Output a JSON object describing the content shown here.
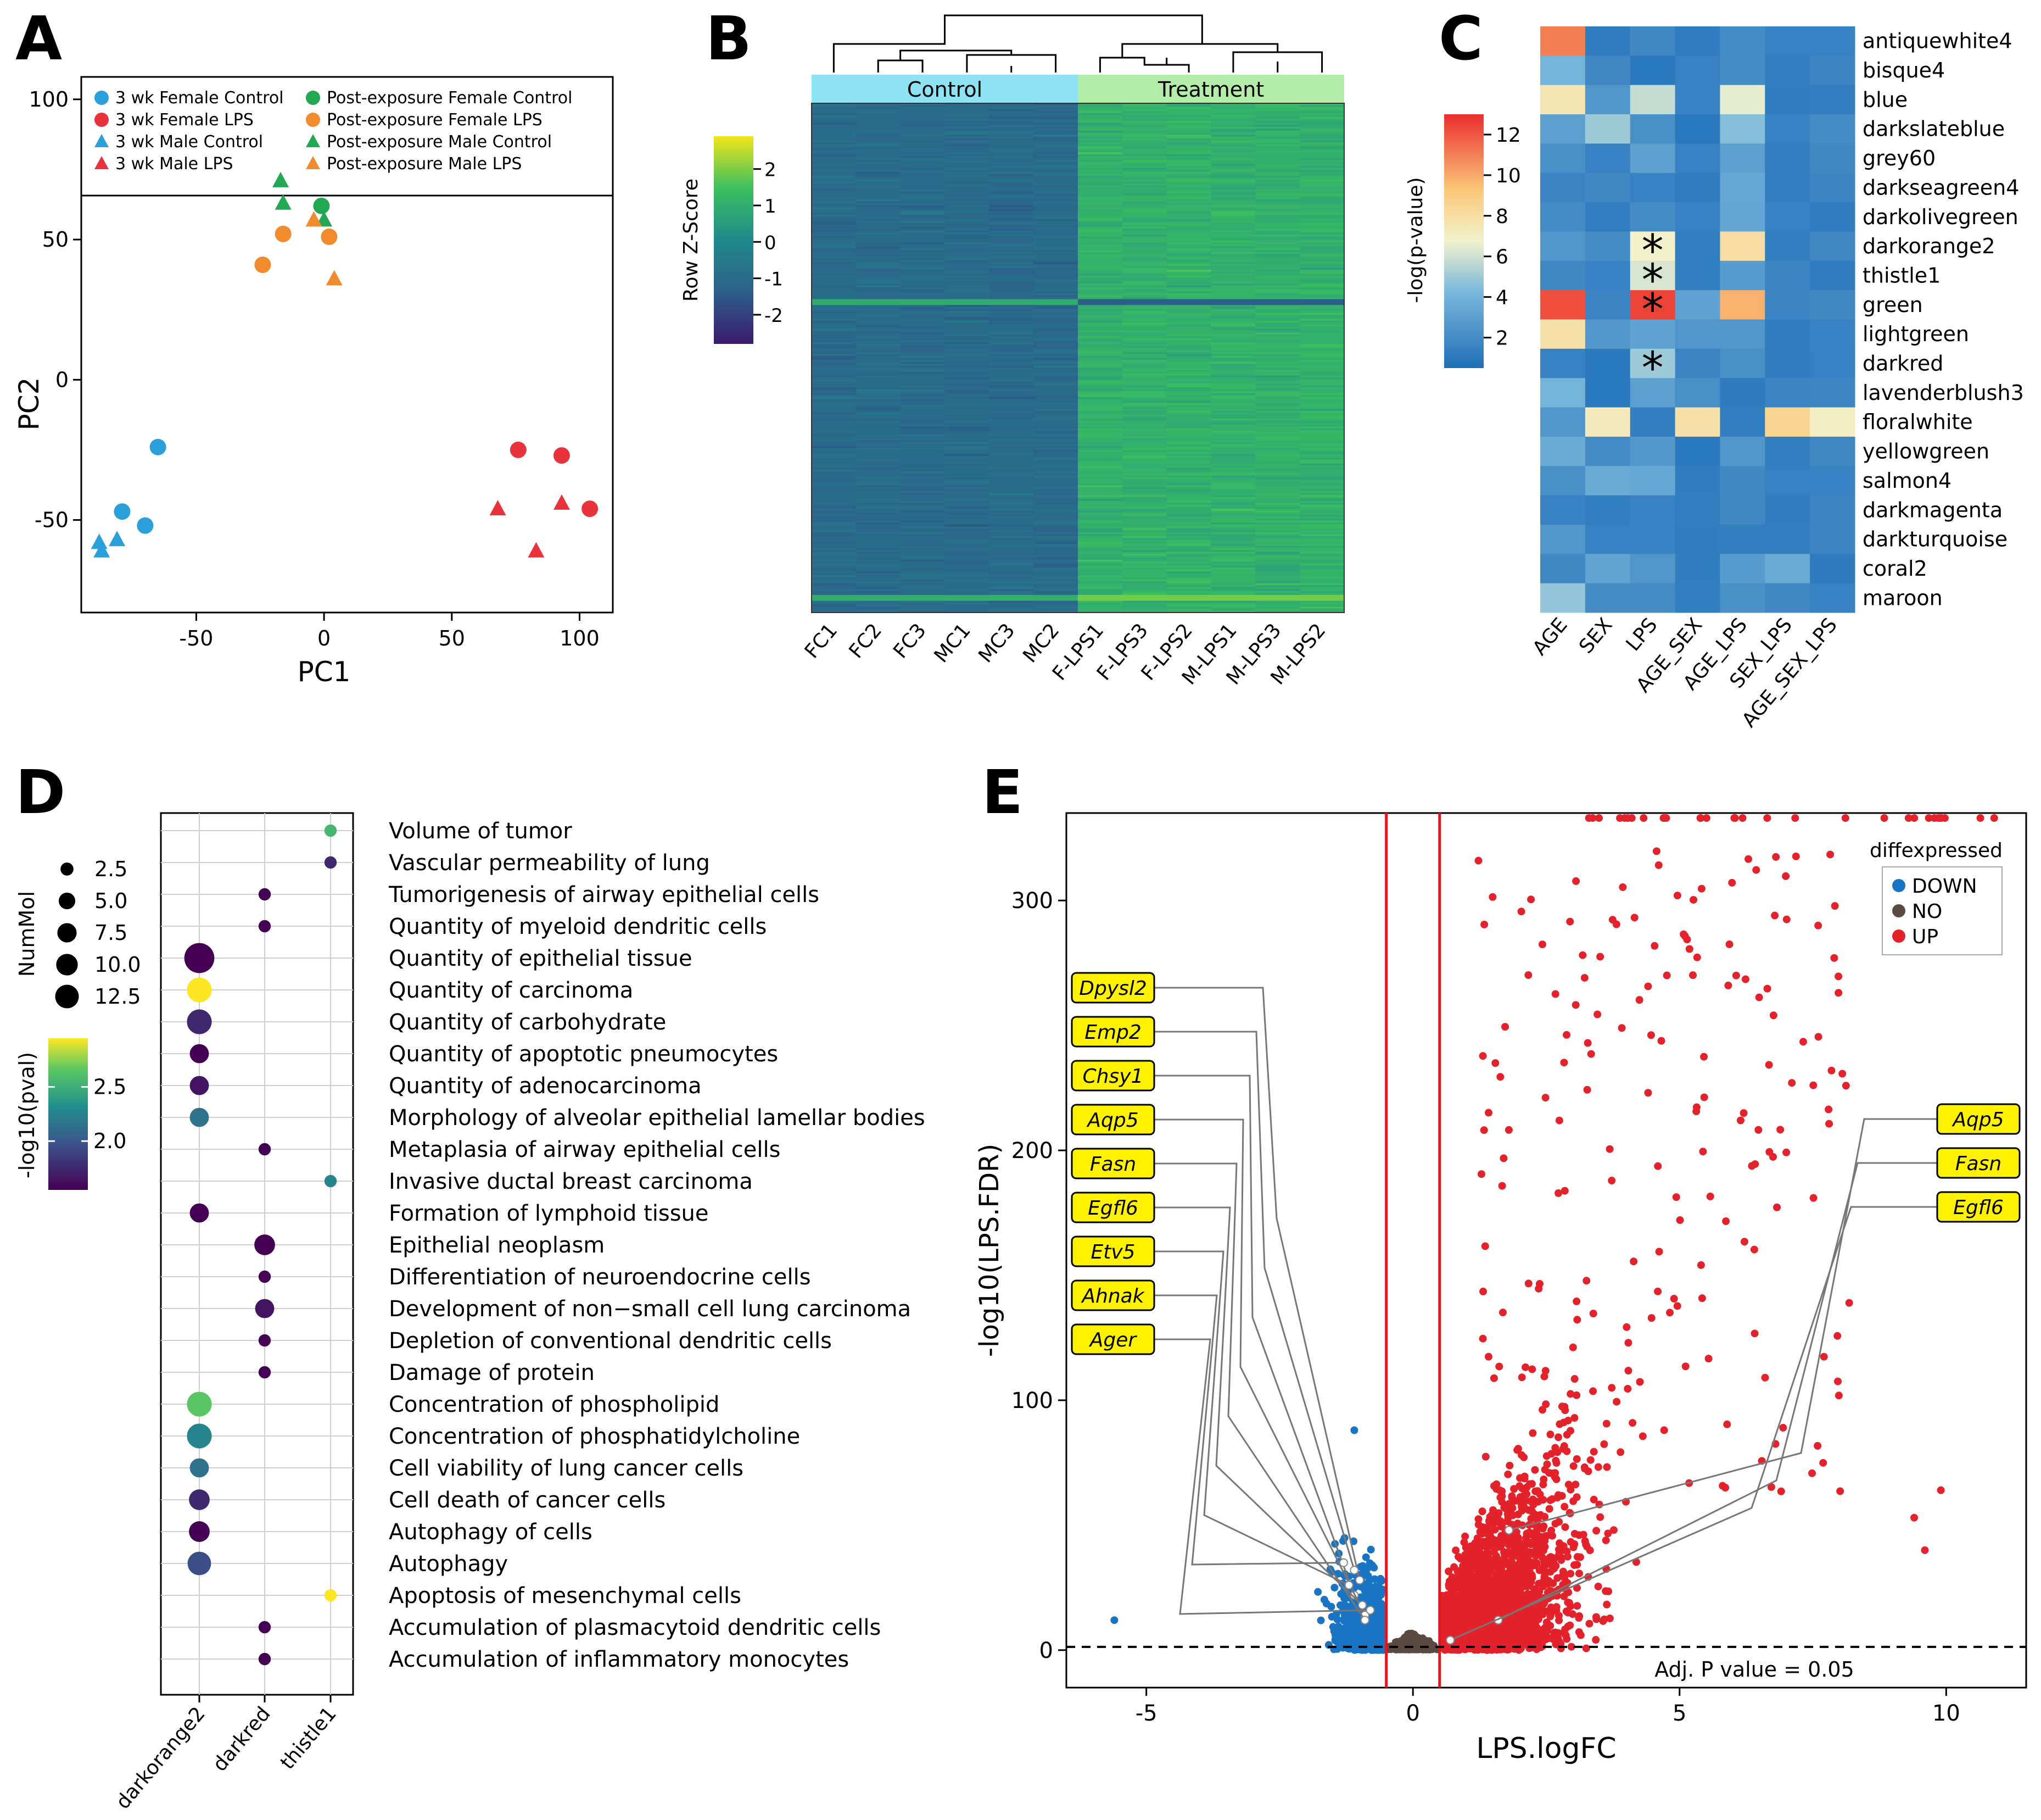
{
  "chart_data": [
    {
      "panel": "A",
      "type": "scatter",
      "xlabel": "PC1",
      "ylabel": "PC2",
      "xlim": [
        -95,
        113
      ],
      "ylim": [
        -83,
        108
      ],
      "xticks": [
        -50,
        0,
        50,
        100
      ],
      "yticks": [
        -50,
        0,
        50,
        100
      ],
      "legend_position": "top",
      "series": [
        {
          "name": "3 wk Female Control",
          "color": "#2a9fd9",
          "marker": "circle",
          "points": [
            [
              -65,
              -24
            ],
            [
              -79,
              -47
            ],
            [
              -70,
              -52
            ]
          ]
        },
        {
          "name": "3 wk Female LPS",
          "color": "#e8323c",
          "marker": "circle",
          "points": [
            [
              76,
              -25
            ],
            [
              93,
              -27
            ],
            [
              104,
              -46
            ]
          ]
        },
        {
          "name": "3 wk Male Control",
          "color": "#2a9fd9",
          "marker": "triangle",
          "points": [
            [
              -88,
              -58
            ],
            [
              -87,
              -61
            ],
            [
              -81,
              -57
            ]
          ]
        },
        {
          "name": "3 wk Male LPS",
          "color": "#e8323c",
          "marker": "triangle",
          "points": [
            [
              68,
              -46
            ],
            [
              93,
              -44
            ],
            [
              83,
              -61
            ]
          ]
        },
        {
          "name": "Post-exposure Female Control",
          "color": "#22a852",
          "marker": "circle",
          "points": [
            [
              -1,
              62
            ]
          ]
        },
        {
          "name": "Post-exposure Female LPS",
          "color": "#f08c2e",
          "marker": "circle",
          "points": [
            [
              -24,
              41
            ],
            [
              -16,
              52
            ],
            [
              2,
              51
            ]
          ]
        },
        {
          "name": "Post-exposure Male Control",
          "color": "#22a852",
          "marker": "triangle",
          "points": [
            [
              -17,
              71
            ],
            [
              -16,
              63
            ],
            [
              0,
              57
            ]
          ]
        },
        {
          "name": "Post-exposure Male LPS",
          "color": "#f08c2e",
          "marker": "triangle",
          "points": [
            [
              -4,
              57
            ],
            [
              4,
              36
            ]
          ]
        }
      ]
    },
    {
      "panel": "B",
      "type": "heatmap",
      "columns": [
        "FC1",
        "FC2",
        "FC3",
        "MC1",
        "MC3",
        "MC2",
        "F-LPS1",
        "F-LPS3",
        "F-LPS2",
        "M-LPS1",
        "M-LPS3",
        "M-LPS2"
      ],
      "groups": [
        {
          "label": "Control",
          "span": 6,
          "color": "#8de3f2"
        },
        {
          "label": "Treatment",
          "span": 6,
          "color": "#b4ecaa"
        }
      ],
      "colorbar": {
        "title": "Row Z-Score",
        "ticks": [
          2,
          1,
          0,
          -1,
          -2
        ]
      },
      "summary": "Control columns mostly low z-scores (about -1), treatment columns mostly high z-scores (about +1)"
    },
    {
      "panel": "C",
      "type": "heatmap",
      "rows": [
        "antiquewhite4",
        "bisque4",
        "blue",
        "darkslateblue",
        "grey60",
        "darkseagreen4",
        "darkolivegreen",
        "darkorange2",
        "thistle1",
        "green",
        "lightgreen",
        "darkred",
        "lavenderblush3",
        "floralwhite",
        "yellowgreen",
        "salmon4",
        "darkmagenta",
        "darkturquoise",
        "coral2",
        "maroon"
      ],
      "columns": [
        "AGE",
        "SEX",
        "LPS",
        "AGE_SEX",
        "AGE_LPS",
        "SEX_LPS",
        "AGE_SEX_LPS"
      ],
      "values": [
        [
          11,
          1.2,
          1.8,
          1.2,
          2,
          1.5,
          1.5
        ],
        [
          4,
          1.8,
          1,
          1.5,
          2,
          1.3,
          1.6
        ],
        [
          7.5,
          2.5,
          5.8,
          1.5,
          6.5,
          1.2,
          1.3
        ],
        [
          3,
          5,
          2.2,
          1,
          4.5,
          1.5,
          2
        ],
        [
          2.2,
          1.5,
          3,
          1.5,
          3,
          1.3,
          1.8
        ],
        [
          1.6,
          1.8,
          1.5,
          1.2,
          3.4,
          1.3,
          1.6
        ],
        [
          2,
          1.3,
          2,
          1.5,
          3.3,
          1.5,
          1.2
        ],
        [
          2.5,
          2,
          6.8,
          1.3,
          8,
          1.3,
          1.8
        ],
        [
          1.8,
          1.5,
          6.2,
          1.3,
          2.8,
          1.6,
          1.2
        ],
        [
          12.2,
          1.6,
          12.5,
          3.1,
          9.8,
          1.6,
          1.8
        ],
        [
          7.8,
          2.6,
          3.1,
          2.5,
          2.5,
          1.2,
          1.5
        ],
        [
          1.4,
          1,
          5,
          1.6,
          2.2,
          1.2,
          1.4
        ],
        [
          4,
          1,
          3,
          2.2,
          1.1,
          1.6,
          1.7
        ],
        [
          2.5,
          7.2,
          1.3,
          7.8,
          1.3,
          8.5,
          7
        ],
        [
          3.6,
          2,
          2.6,
          1,
          2.5,
          1.3,
          1.8
        ],
        [
          2.2,
          3.6,
          3.4,
          1.2,
          1.8,
          1.4,
          1.5
        ],
        [
          1.5,
          1.3,
          1.5,
          1.3,
          1.8,
          1.2,
          1.6
        ],
        [
          2.6,
          1.5,
          1.5,
          1.2,
          1.3,
          1.3,
          1.6
        ],
        [
          1.8,
          3.2,
          2.5,
          1.2,
          2.8,
          3.6,
          1.1
        ],
        [
          4.8,
          2,
          2,
          1.3,
          2.2,
          1.8,
          1.4
        ]
      ],
      "significant": [
        [
          7,
          2
        ],
        [
          8,
          2
        ],
        [
          9,
          2
        ],
        [
          11,
          2
        ]
      ],
      "significance_mark": "*",
      "colorbar": {
        "title": "-log(p-value)",
        "ticks": [
          12,
          10,
          8,
          6,
          4,
          2
        ],
        "range": [
          0.5,
          13
        ]
      }
    },
    {
      "panel": "D",
      "type": "scatter",
      "columns": [
        "darkorange2",
        "darkred",
        "thistle1"
      ],
      "terms": [
        "Volume of tumor",
        "Vascular permeability of lung",
        "Tumorigenesis of airway epithelial cells",
        "Quantity of myeloid dendritic cells",
        "Quantity of epithelial tissue",
        "Quantity of carcinoma",
        "Quantity of carbohydrate",
        "Quantity of apoptotic pneumocytes",
        "Quantity of adenocarcinoma",
        "Morphology of alveolar epithelial lamellar bodies",
        "Metaplasia of airway epithelial cells",
        "Invasive ductal breast carcinoma",
        "Formation of lymphoid tissue",
        "Epithelial neoplasm",
        "Differentiation of neuroendocrine cells",
        "Development of non−small cell lung carcinoma",
        "Depletion of conventional dendritic cells",
        "Damage of protein",
        "Concentration of phospholipid",
        "Concentration of phosphatidylcholine",
        "Cell viability of lung cancer cells",
        "Cell death of cancer cells",
        "Autophagy of cells",
        "Autophagy",
        "Apoptosis of mesenchymal cells",
        "Accumulation of plasmacytoid dendritic cells",
        "Accumulation of inflammatory monocytes"
      ],
      "points": [
        {
          "term": 0,
          "col": 2,
          "n": 1,
          "p": 2.6
        },
        {
          "term": 1,
          "col": 2,
          "n": 1,
          "p": 1.8
        },
        {
          "term": 2,
          "col": 1,
          "n": 1,
          "p": 1.6
        },
        {
          "term": 3,
          "col": 1,
          "n": 1,
          "p": 1.6
        },
        {
          "term": 4,
          "col": 0,
          "n": 13,
          "p": 1.6
        },
        {
          "term": 5,
          "col": 0,
          "n": 8,
          "p": 3.0
        },
        {
          "term": 6,
          "col": 0,
          "n": 8,
          "p": 1.8
        },
        {
          "term": 7,
          "col": 0,
          "n": 4,
          "p": 1.6
        },
        {
          "term": 8,
          "col": 0,
          "n": 4,
          "p": 1.7
        },
        {
          "term": 9,
          "col": 0,
          "n": 4,
          "p": 2.2
        },
        {
          "term": 10,
          "col": 1,
          "n": 1,
          "p": 1.6
        },
        {
          "term": 11,
          "col": 2,
          "n": 1,
          "p": 2.3
        },
        {
          "term": 12,
          "col": 0,
          "n": 4,
          "p": 1.6
        },
        {
          "term": 13,
          "col": 1,
          "n": 5,
          "p": 1.6
        },
        {
          "term": 14,
          "col": 1,
          "n": 1,
          "p": 1.6
        },
        {
          "term": 15,
          "col": 1,
          "n": 4,
          "p": 1.7
        },
        {
          "term": 16,
          "col": 1,
          "n": 1,
          "p": 1.6
        },
        {
          "term": 17,
          "col": 1,
          "n": 1,
          "p": 1.6
        },
        {
          "term": 18,
          "col": 0,
          "n": 8,
          "p": 2.7
        },
        {
          "term": 19,
          "col": 0,
          "n": 8,
          "p": 2.3
        },
        {
          "term": 20,
          "col": 0,
          "n": 4,
          "p": 2.2
        },
        {
          "term": 21,
          "col": 0,
          "n": 5,
          "p": 1.8
        },
        {
          "term": 22,
          "col": 0,
          "n": 5,
          "p": 1.6
        },
        {
          "term": 23,
          "col": 0,
          "n": 7,
          "p": 2.0
        },
        {
          "term": 24,
          "col": 2,
          "n": 1,
          "p": 3.0
        },
        {
          "term": 25,
          "col": 1,
          "n": 1,
          "p": 1.6
        },
        {
          "term": 26,
          "col": 1,
          "n": 1,
          "p": 1.6
        }
      ],
      "size_legend": {
        "title": "NumMol",
        "values": [
          2.5,
          5.0,
          7.5,
          10.0,
          12.5
        ]
      },
      "color_legend": {
        "title": "-log10(pval)",
        "ticks": [
          2.5,
          2.0
        ],
        "range": [
          1.6,
          3.0
        ]
      }
    },
    {
      "panel": "E",
      "type": "scatter",
      "xlabel": "LPS.logFC",
      "ylabel": "-log10(LPS.FDR)",
      "xlim": [
        -6.5,
        11.5
      ],
      "ylim": [
        -15,
        335
      ],
      "xticks": [
        -5,
        0,
        5,
        10
      ],
      "yticks": [
        0,
        100,
        200,
        300
      ],
      "vlines": [
        -0.5,
        0.5
      ],
      "hline": 1.3,
      "hline_label": "Adj. P value = 0.05",
      "legend": {
        "title": "diffexpressed",
        "entries": [
          {
            "label": "DOWN",
            "color": "#1a74c4"
          },
          {
            "label": "NO",
            "color": "#5a4a42"
          },
          {
            "label": "UP",
            "color": "#e3222b"
          }
        ]
      },
      "notable_points": [
        [
          -5.6,
          12
        ],
        [
          -1.1,
          88
        ],
        [
          9.9,
          64
        ],
        [
          9.6,
          40
        ],
        [
          9.4,
          53
        ],
        [
          7.9,
          277
        ],
        [
          3.3,
          340
        ],
        [
          10.9,
          340
        ]
      ],
      "labels_left": [
        {
          "gene": "Dpysl2",
          "x": -1.0,
          "y": 28
        },
        {
          "gene": "Emp2",
          "x": -1.1,
          "y": 32
        },
        {
          "gene": "Chsy1",
          "x": -1.1,
          "y": 22
        },
        {
          "gene": "Aqp5",
          "x": -0.9,
          "y": 14
        },
        {
          "gene": "Fasn",
          "x": -0.9,
          "y": 12
        },
        {
          "gene": "Egfl6",
          "x": -0.95,
          "y": 18
        },
        {
          "gene": "Etv5",
          "x": -1.2,
          "y": 26
        },
        {
          "gene": "Ahnak",
          "x": -1.3,
          "y": 35
        },
        {
          "gene": "Ager",
          "x": -0.8,
          "y": 16
        }
      ],
      "labels_right": [
        {
          "gene": "Aqp5",
          "x": 1.8,
          "y": 48
        },
        {
          "gene": "Fasn",
          "x": 1.6,
          "y": 12
        },
        {
          "gene": "Egfl6",
          "x": 0.7,
          "y": 4
        }
      ]
    }
  ],
  "panel_labels": [
    "A",
    "B",
    "C",
    "D",
    "E"
  ],
  "colors": {
    "heatmap_low": "#3b1a6e",
    "heatmap_high": "#f2e61a",
    "up": "#e3222b",
    "down": "#1a74c4",
    "no": "#5a4a42",
    "gene_label_fill": "#fff200"
  }
}
